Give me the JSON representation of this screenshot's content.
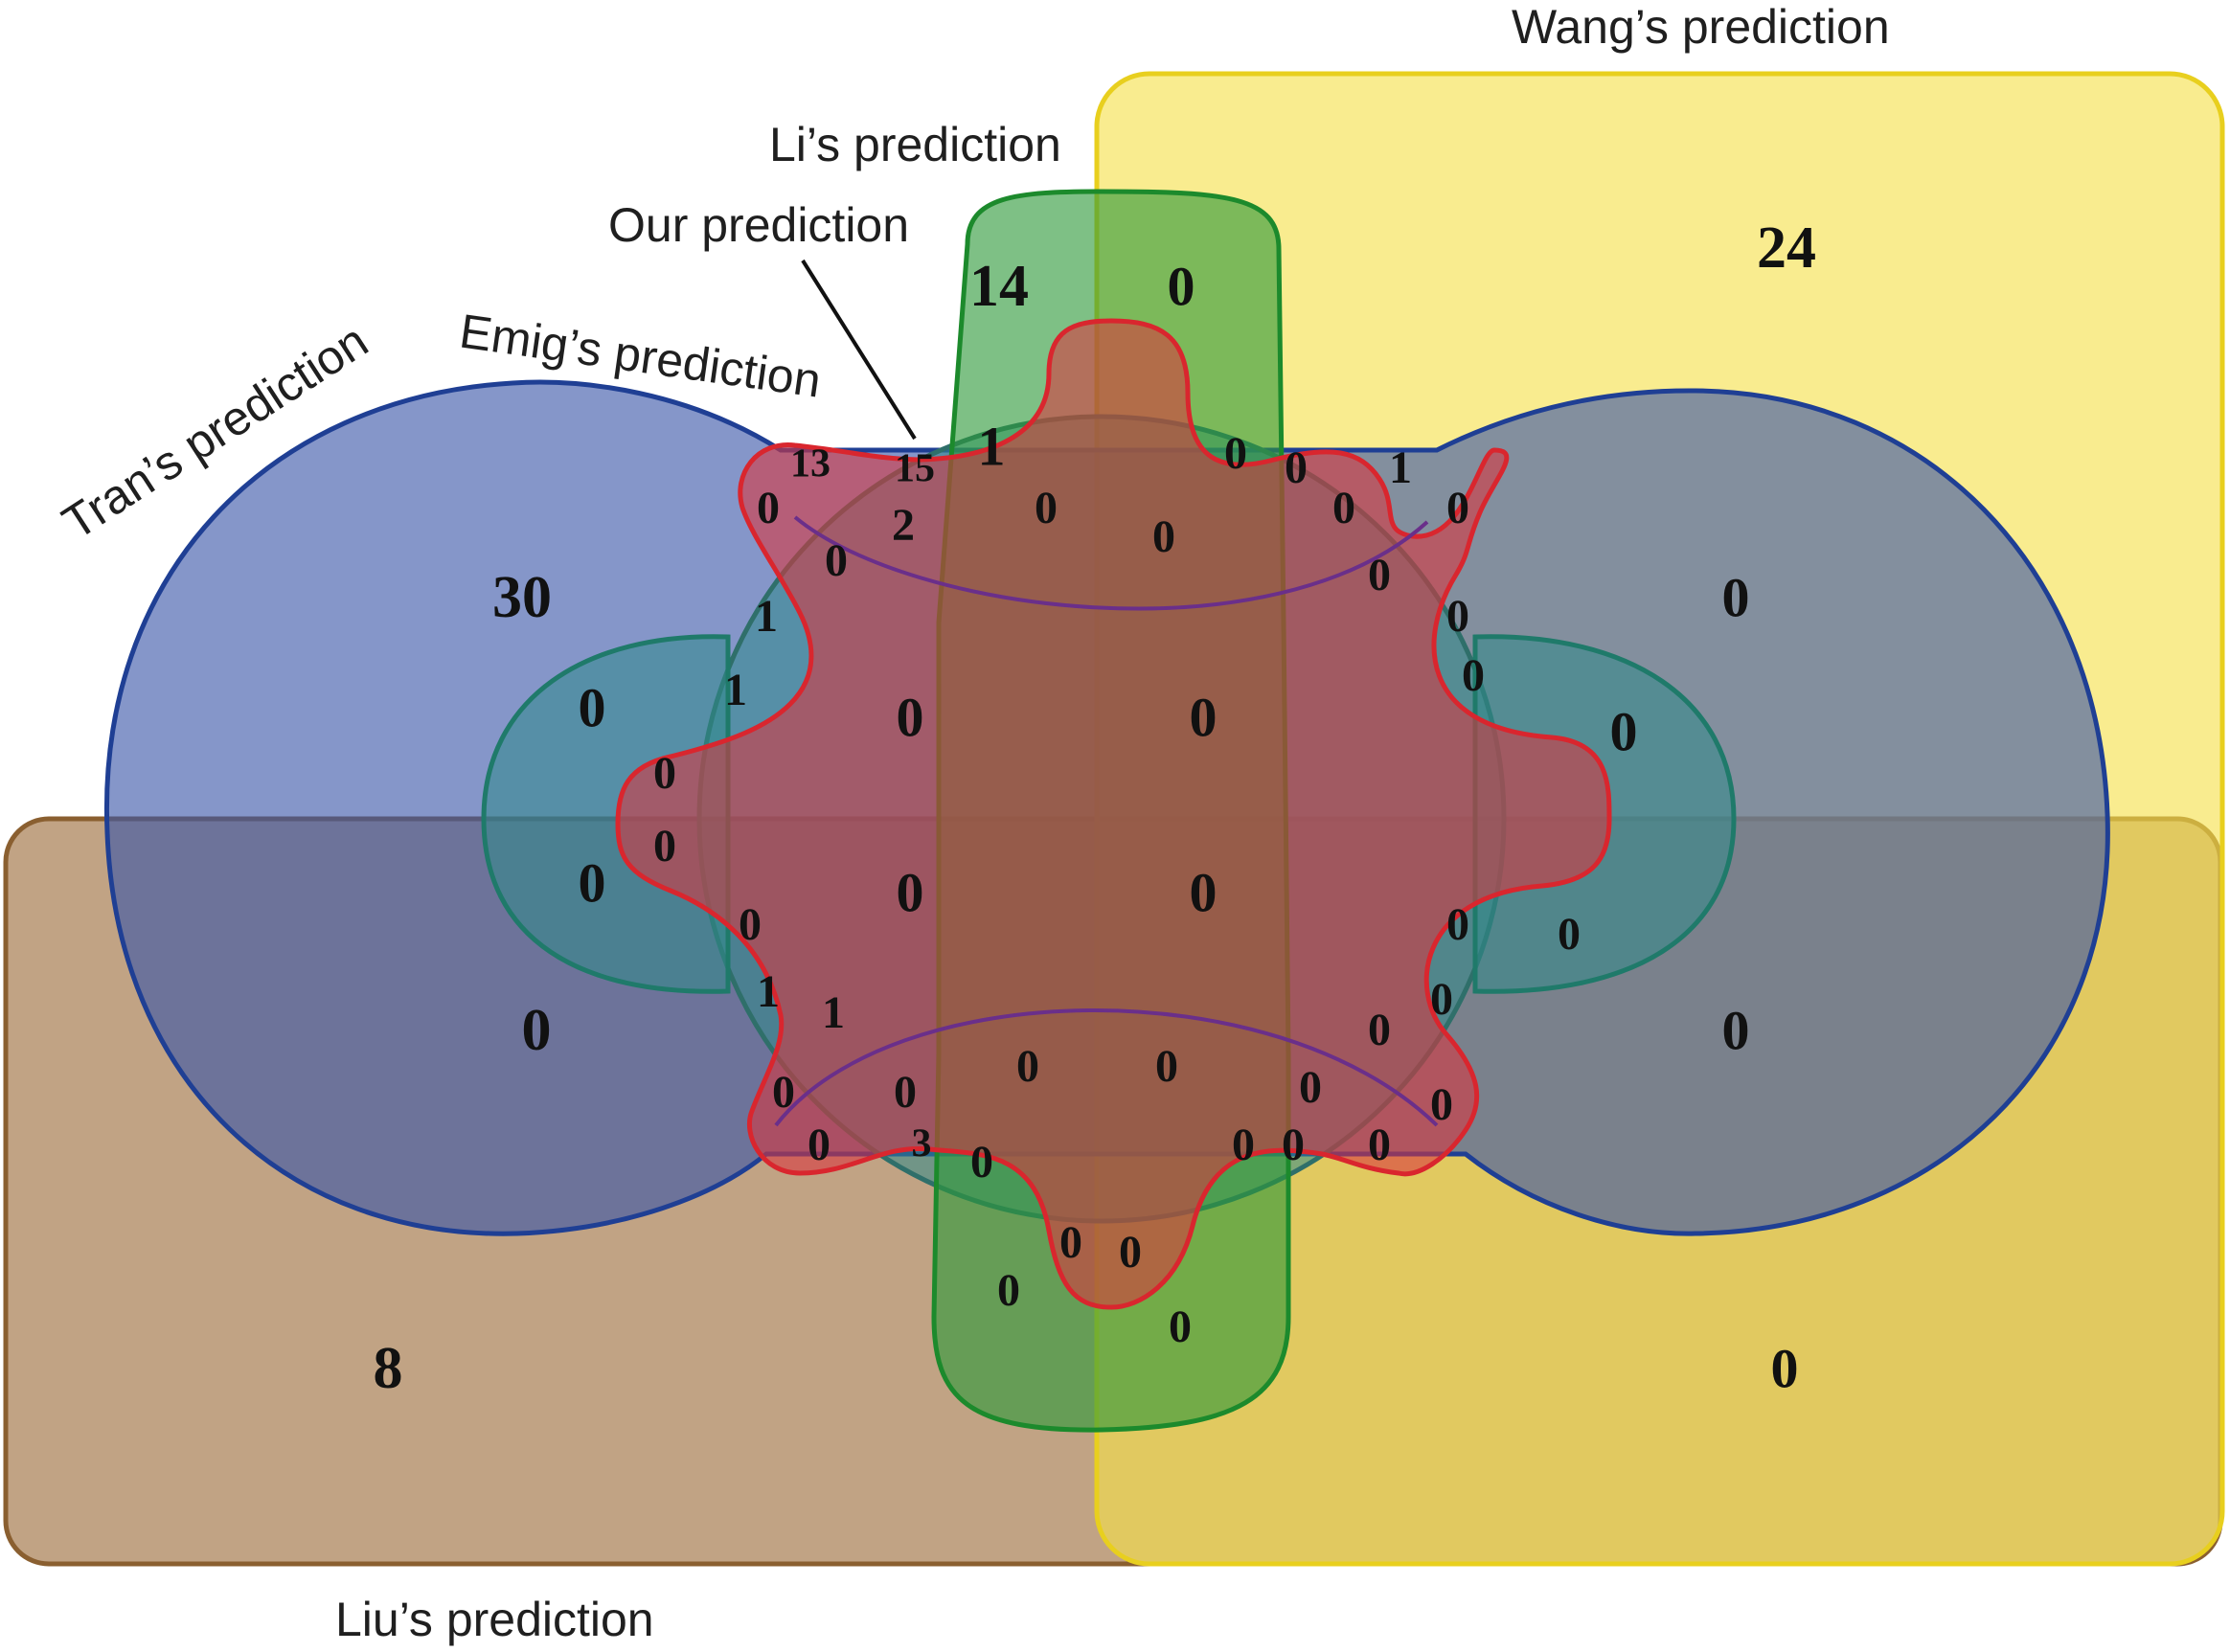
{
  "diagram": {
    "type": "venn",
    "sets": [
      {
        "id": "wang",
        "label": "Wang’s prediction",
        "color": "#f5e04a"
      },
      {
        "id": "liu",
        "label": "Liu’s prediction",
        "color": "#a97f55"
      },
      {
        "id": "tran",
        "label": "Tran’s prediction",
        "color": "#3a56a8"
      },
      {
        "id": "emig",
        "label": "Emig’s prediction",
        "color": "#2f8a8a"
      },
      {
        "id": "li",
        "label": "Li’s prediction",
        "color": "#2e9a3a"
      },
      {
        "id": "our",
        "label": "Our prediction",
        "color": "#d9363e"
      }
    ],
    "region_counts": [
      "24",
      "14",
      "0",
      "30",
      "0",
      "13",
      "15",
      "1",
      "2",
      "0",
      "0",
      "0",
      "0",
      "0",
      "1",
      "0",
      "0",
      "0",
      "1",
      "1",
      "0",
      "0",
      "0",
      "0",
      "0",
      "0",
      "0",
      "0",
      "0",
      "0",
      "0",
      "0",
      "0",
      "0",
      "0",
      "1",
      "0",
      "1",
      "0",
      "0",
      "0",
      "0",
      "0",
      "0",
      "0",
      "0",
      "0",
      "0",
      "3",
      "0",
      "0",
      "0",
      "0",
      "0",
      "0",
      "0",
      "0",
      "0",
      "8",
      "0"
    ]
  }
}
